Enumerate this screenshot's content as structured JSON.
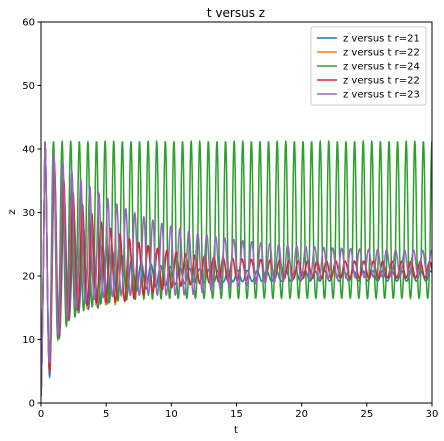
{
  "chart_data": {
    "type": "line",
    "title": "t versus z",
    "xlabel": "t",
    "ylabel": "z",
    "xlim": [
      0,
      30
    ],
    "ylim": [
      0,
      60
    ],
    "xticks": [
      0,
      5,
      10,
      15,
      20,
      25,
      30
    ],
    "yticks": [
      0,
      10,
      20,
      30,
      40,
      50,
      60
    ],
    "legend_position": "top-right",
    "grid": false,
    "series": [
      {
        "name": "z versus t r=21",
        "color": "#1f77b4",
        "peak": 41,
        "first_min": 15,
        "final": 20,
        "final_amplitude": 0.8,
        "period": 0.74,
        "decay": 0.12
      },
      {
        "name": "z versus t r=22",
        "color": "#ff7f0e",
        "peak": 41,
        "first_min": 15.5,
        "final": 21,
        "final_amplitude": 1.2,
        "period": 0.72,
        "decay": 0.09
      },
      {
        "name": "z versus t r=24",
        "color": "#2ca02c",
        "peak": 41.2,
        "first_min": 16.5,
        "final": 23,
        "final_amplitude": 3.4,
        "period": 0.66,
        "decay": 0.0
      },
      {
        "name": "z versus t r=22",
        "color": "#d62728",
        "peak": 41,
        "first_min": 16,
        "final": 21,
        "final_amplitude": 1.3,
        "period": 0.72,
        "decay": 0.085
      },
      {
        "name": "z versus t r=23",
        "color": "#9467bd",
        "peak": 41,
        "first_min": 17,
        "final": 22,
        "final_amplitude": 1.8,
        "period": 0.69,
        "decay": 0.05
      }
    ]
  }
}
